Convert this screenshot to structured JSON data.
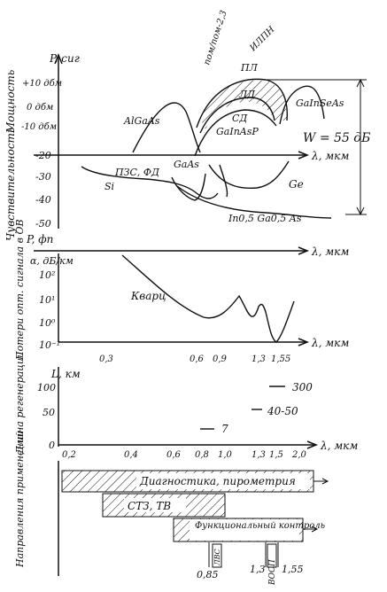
{
  "panel_power": {
    "ylabel": "Мощность",
    "axis_label": "P, сиг",
    "ticks": [
      "+10 дбм",
      "0 дбм",
      "-10 дбм"
    ],
    "curve_labels": [
      "AlGaAs",
      "ПЛ",
      "ЛД",
      "СД",
      "GaInAsP",
      "GaInSeAs"
    ],
    "top_labels": [
      "пом/пом-2,3",
      "ИЛПН"
    ],
    "range_label": "W = 55 дБ"
  },
  "panel_sens": {
    "ylabel": "Чувствительность",
    "axis_label": "P, фп",
    "ticks": [
      "-20",
      "-30",
      "-40",
      "-50"
    ],
    "curve_labels": [
      "ПЗС, ФД",
      "Si",
      "GaAs",
      "Ge",
      "In0,5 Ga0,5 As"
    ],
    "x_unit": "λ, мкм"
  },
  "panel_loss": {
    "ylabel": "Потери опт. сигнала в ОВ",
    "axis_label": "α, дБ/км",
    "ticks": [
      "10²",
      "10¹",
      "10⁰",
      "10⁻¹"
    ],
    "curve_label": "Кварц",
    "x_ticks": [
      "0,3",
      "0,6",
      "0,9",
      "1,3",
      "1,55"
    ],
    "x_unit": "λ, мкм"
  },
  "panel_regen": {
    "ylabel": "Длина регенерации",
    "axis_label": "L, км",
    "ticks": [
      "100",
      "50",
      "0"
    ],
    "segment_labels": [
      "300",
      "40-50",
      "7"
    ],
    "x_ticks": [
      "0,2",
      "0,4",
      "0,6",
      "0,8",
      "1,0",
      "1,3",
      "1,5",
      "2,0"
    ],
    "x_unit": "λ, мкм"
  },
  "panel_apps": {
    "ylabel": "Направления применений",
    "bands": [
      "Диагностика, пирометрия",
      "СТЗ, ТВ",
      "Функциональный контроль"
    ],
    "markers": [
      "0,85",
      "1,3",
      "1,55"
    ],
    "marker_labels": [
      "ЛВС",
      "ВОСП"
    ]
  }
}
